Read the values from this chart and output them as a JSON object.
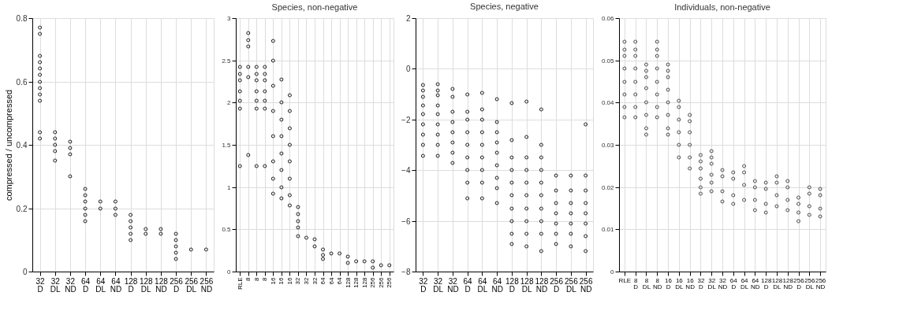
{
  "chart_data": [
    {
      "type": "scatter",
      "ylabel": "compressed / uncompressed",
      "categories": [
        "32 D",
        "32 DL",
        "32 ND",
        "64 D",
        "64 DL",
        "64 ND",
        "128 D",
        "128 DL",
        "128 ND",
        "256 D",
        "256 DL",
        "256 ND"
      ],
      "marker": "circle",
      "grid": true,
      "ylim": [
        0,
        0.8
      ],
      "yticks": [
        0,
        0.2,
        0.4,
        0.6,
        0.8
      ],
      "series": [
        {
          "color": "#222222",
          "values": [
            0.77,
            0.44,
            0.41,
            0.26,
            0.22,
            0.22,
            0.18,
            0.135,
            0.135,
            0.12,
            0.07,
            0.07
          ]
        },
        {
          "color": "#222222",
          "values": [
            0.75,
            0.42,
            0.39,
            0.24,
            0.2,
            0.2,
            0.16,
            0.12,
            0.12,
            0.1,
            null,
            null
          ]
        },
        {
          "color": "#222222",
          "values": [
            0.68,
            0.4,
            0.37,
            0.22,
            null,
            0.18,
            0.14,
            null,
            null,
            0.08,
            null,
            null
          ]
        },
        {
          "color": "#222222",
          "values": [
            0.66,
            0.38,
            0.3,
            0.2,
            null,
            null,
            0.12,
            null,
            null,
            0.06,
            null,
            null
          ]
        },
        {
          "color": "#222222",
          "values": [
            0.64,
            0.35,
            null,
            0.18,
            null,
            null,
            0.1,
            null,
            null,
            0.04,
            null,
            null
          ]
        },
        {
          "color": "#222222",
          "values": [
            0.62,
            null,
            null,
            0.16,
            null,
            null,
            null,
            null,
            null,
            null,
            null,
            null
          ]
        },
        {
          "color": "#222222",
          "values": [
            0.6,
            null,
            null,
            null,
            null,
            null,
            null,
            null,
            null,
            null,
            null,
            null
          ]
        },
        {
          "color": "#222222",
          "values": [
            0.58,
            null,
            null,
            null,
            null,
            null,
            null,
            null,
            null,
            null,
            null,
            null
          ]
        },
        {
          "color": "#222222",
          "values": [
            0.56,
            null,
            null,
            null,
            null,
            null,
            null,
            null,
            null,
            null,
            null,
            null
          ]
        },
        {
          "color": "#222222",
          "values": [
            0.54,
            null,
            null,
            null,
            null,
            null,
            null,
            null,
            null,
            null,
            null,
            null
          ]
        },
        {
          "color": "#222222",
          "values": [
            0.44,
            null,
            null,
            null,
            null,
            null,
            null,
            null,
            null,
            null,
            null,
            null
          ]
        },
        {
          "color": "#222222",
          "values": [
            0.42,
            null,
            null,
            null,
            null,
            null,
            null,
            null,
            null,
            null,
            null,
            null
          ]
        }
      ]
    },
    {
      "type": "scatter",
      "title": "Species, non-negative",
      "categories": [
        "RLE",
        "8",
        "8",
        "8",
        "16",
        "16",
        "16",
        "32",
        "32",
        "32",
        "64",
        "64",
        "64",
        "128",
        "128",
        "128",
        "256",
        "256",
        "256"
      ],
      "marker": "circle",
      "grid": true,
      "ylim": [
        0,
        3
      ],
      "yticks": [
        0,
        0.5,
        1,
        1.5,
        2,
        2.5,
        3
      ],
      "series": [
        {
          "color": "#222222",
          "values": [
            2.42,
            2.82,
            2.42,
            2.42,
            2.73,
            2.27,
            2.09,
            0.76,
            0.4,
            0.38,
            0.26,
            0.21,
            0.21,
            0.18,
            0.12,
            0.12,
            0.12,
            0.07,
            0.07
          ]
        },
        {
          "color": "#222222",
          "values": [
            2.34,
            2.74,
            2.34,
            2.34,
            2.5,
            2.0,
            1.9,
            0.68,
            null,
            0.3,
            0.2,
            null,
            null,
            0.1,
            null,
            null,
            0.05,
            null,
            null
          ]
        },
        {
          "color": "#222222",
          "values": [
            2.26,
            2.66,
            2.26,
            2.26,
            2.2,
            1.8,
            1.7,
            0.6,
            null,
            null,
            0.15,
            null,
            null,
            null,
            null,
            null,
            null,
            null,
            null
          ]
        },
        {
          "color": "#222222",
          "values": [
            2.13,
            2.42,
            2.13,
            2.13,
            1.9,
            1.6,
            1.5,
            0.52,
            null,
            null,
            null,
            null,
            null,
            null,
            null,
            null,
            null,
            null,
            null
          ]
        },
        {
          "color": "#222222",
          "values": [
            2.02,
            2.3,
            2.02,
            2.02,
            1.6,
            1.4,
            1.3,
            0.42,
            null,
            null,
            null,
            null,
            null,
            null,
            null,
            null,
            null,
            null,
            null
          ]
        },
        {
          "color": "#222222",
          "values": [
            1.93,
            1.38,
            1.93,
            1.93,
            1.3,
            1.2,
            1.1,
            null,
            null,
            null,
            null,
            null,
            null,
            null,
            null,
            null,
            null,
            null,
            null
          ]
        },
        {
          "color": "#222222",
          "values": [
            1.25,
            null,
            1.25,
            1.25,
            1.1,
            1.0,
            0.9,
            null,
            null,
            null,
            null,
            null,
            null,
            null,
            null,
            null,
            null,
            null,
            null
          ]
        },
        {
          "color": "#222222",
          "values": [
            null,
            null,
            null,
            null,
            0.92,
            0.87,
            0.78,
            null,
            null,
            null,
            null,
            null,
            null,
            null,
            null,
            null,
            null,
            null,
            null
          ]
        }
      ]
    },
    {
      "type": "scatter",
      "title": "Species, negative",
      "categories": [
        "32 D",
        "32 DL",
        "32 ND",
        "64 D",
        "64 DL",
        "64 ND",
        "128 D",
        "128 DL",
        "128 ND",
        "256 D",
        "256 DL",
        "256 ND"
      ],
      "marker": "circle",
      "grid": true,
      "ylim": [
        -8,
        2
      ],
      "yticks": [
        -8,
        -6,
        -4,
        -2,
        0,
        2
      ],
      "series": [
        {
          "color": "#222222",
          "values": [
            -0.63,
            -0.6,
            -0.8,
            -1.0,
            -0.95,
            -1.2,
            -1.35,
            -1.3,
            -1.6,
            -4.2,
            -4.2,
            -2.2
          ]
        },
        {
          "color": "#222222",
          "values": [
            -0.85,
            -0.85,
            -1.1,
            -1.7,
            -1.6,
            -2.1,
            -2.8,
            -2.7,
            -3.0,
            -4.8,
            -4.8,
            -4.2
          ]
        },
        {
          "color": "#222222",
          "values": [
            -1.1,
            -1.05,
            -1.7,
            -2.0,
            -2.0,
            -2.5,
            -3.5,
            -3.5,
            -3.5,
            -5.3,
            -5.3,
            -4.8
          ]
        },
        {
          "color": "#222222",
          "values": [
            -1.45,
            -1.45,
            -2.1,
            -2.5,
            -2.5,
            -2.9,
            -4.0,
            -4.0,
            -4.0,
            -5.7,
            -5.7,
            -5.3
          ]
        },
        {
          "color": "#222222",
          "values": [
            -1.8,
            -1.8,
            -2.5,
            -3.0,
            -3.0,
            -3.3,
            -4.5,
            -4.5,
            -4.5,
            -6.1,
            -6.1,
            -5.7
          ]
        },
        {
          "color": "#222222",
          "values": [
            -2.2,
            -2.2,
            -2.9,
            -3.5,
            -3.5,
            -3.8,
            -5.0,
            -5.0,
            -5.0,
            -6.5,
            -6.5,
            -6.1
          ]
        },
        {
          "color": "#222222",
          "values": [
            -2.6,
            -2.6,
            -3.3,
            -4.0,
            -4.0,
            -4.3,
            -5.5,
            -5.5,
            -5.5,
            -6.9,
            -7.0,
            -6.6
          ]
        },
        {
          "color": "#222222",
          "values": [
            -3.0,
            -3.0,
            -3.7,
            -4.5,
            -4.5,
            -4.7,
            -6.0,
            -6.0,
            -6.0,
            null,
            null,
            -7.2
          ]
        },
        {
          "color": "#222222",
          "values": [
            -3.45,
            -3.45,
            null,
            -5.1,
            -5.1,
            -5.3,
            -6.5,
            -6.5,
            -6.5,
            null,
            null,
            null
          ]
        },
        {
          "color": "#222222",
          "values": [
            null,
            null,
            null,
            null,
            null,
            null,
            -6.9,
            -7.0,
            -7.2,
            null,
            null,
            null
          ]
        }
      ]
    },
    {
      "type": "scatter",
      "title": "Individuals, non-negative",
      "categories": [
        "RLE",
        "8 D",
        "8 DL",
        "8 ND",
        "16 D",
        "16 DL",
        "16 ND",
        "32 D",
        "32 DL",
        "32 ND",
        "64 D",
        "64 DL",
        "64 ND",
        "128 D",
        "128 DL",
        "128 ND",
        "256 D",
        "256 DL",
        "256 ND"
      ],
      "marker": "circle",
      "grid": true,
      "ylim": [
        0,
        0.06
      ],
      "yticks": [
        0,
        0.01,
        0.02,
        0.03,
        0.04,
        0.05,
        0.06
      ],
      "series": [
        {
          "color": "#4d4d4d",
          "values": [
            0.0545,
            0.0545,
            0.049,
            0.0545,
            0.049,
            0.0405,
            0.037,
            0.0275,
            0.0285,
            0.024,
            0.0235,
            0.025,
            0.0215,
            0.021,
            0.0225,
            0.0215,
            0.0175,
            0.02,
            0.0195
          ]
        },
        {
          "color": "#4d4d4d",
          "values": [
            0.0525,
            0.0525,
            0.0475,
            0.0525,
            0.0475,
            0.039,
            0.0355,
            0.026,
            0.027,
            0.0225,
            0.022,
            0.0235,
            0.02,
            0.0195,
            0.021,
            0.02,
            0.016,
            0.0185,
            0.018
          ]
        },
        {
          "color": "#4d4d4d",
          "values": [
            0.051,
            0.051,
            0.046,
            0.051,
            0.046,
            0.036,
            0.033,
            0.0245,
            0.0255,
            0.019,
            0.018,
            0.0205,
            0.017,
            0.016,
            0.018,
            0.017,
            0.014,
            0.0155,
            0.015
          ]
        },
        {
          "color": "#4d4d4d",
          "values": [
            0.048,
            0.048,
            0.0435,
            0.048,
            0.043,
            0.033,
            0.03,
            0.022,
            0.023,
            0.0165,
            0.016,
            0.017,
            0.0145,
            0.014,
            0.0155,
            0.0145,
            0.012,
            0.0135,
            0.013
          ]
        },
        {
          "color": "#4d4d4d",
          "values": [
            0.045,
            0.045,
            0.04,
            0.045,
            0.04,
            0.03,
            0.027,
            0.02,
            0.021,
            null,
            null,
            null,
            null,
            null,
            null,
            null,
            null,
            null,
            null
          ]
        },
        {
          "color": "#4d4d4d",
          "values": [
            0.042,
            0.042,
            0.037,
            0.042,
            0.037,
            0.027,
            0.0245,
            0.0185,
            0.019,
            null,
            null,
            null,
            null,
            null,
            null,
            null,
            null,
            null,
            null
          ]
        },
        {
          "color": "#4d4d4d",
          "values": [
            0.039,
            0.039,
            0.034,
            0.039,
            0.034,
            null,
            null,
            null,
            null,
            null,
            null,
            null,
            null,
            null,
            null,
            null,
            null,
            null,
            null
          ]
        },
        {
          "color": "#4d4d4d",
          "values": [
            0.0365,
            0.0365,
            0.0325,
            0.0365,
            0.0325,
            null,
            null,
            null,
            null,
            null,
            null,
            null,
            null,
            null,
            null,
            null,
            null,
            null,
            null
          ]
        }
      ]
    }
  ]
}
